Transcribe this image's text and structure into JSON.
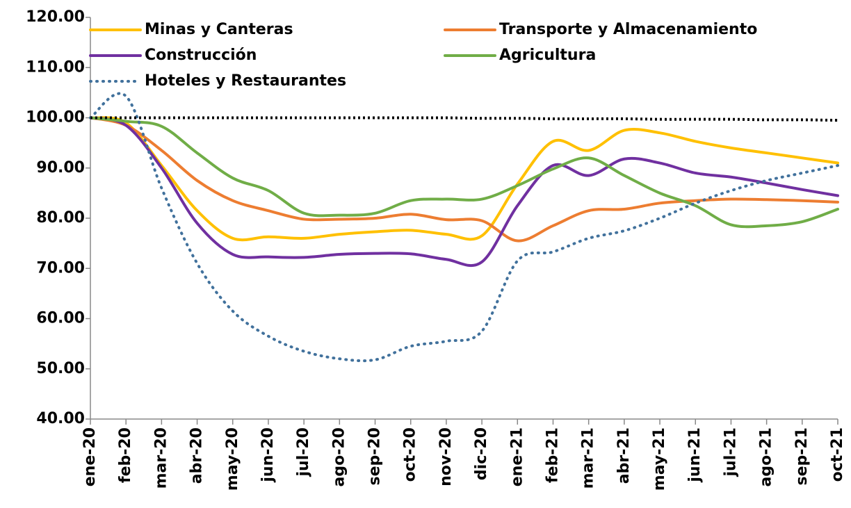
{
  "chart_data": {
    "type": "line",
    "categories": [
      "ene-20",
      "feb-20",
      "mar-20",
      "abr-20",
      "may-20",
      "jun-20",
      "jul-20",
      "ago-20",
      "sep-20",
      "oct-20",
      "nov-20",
      "dic-20",
      "ene-21",
      "feb-21",
      "mar-21",
      "abr-21",
      "may-21",
      "jun-21",
      "jul-21",
      "ago-21",
      "sep-21",
      "oct-21"
    ],
    "series": [
      {
        "name": "Minas y Canteras",
        "color": "#ffc000",
        "style": "solid",
        "values": [
          100,
          99,
          90.5,
          81.5,
          76,
          76.3,
          76,
          76.8,
          77.3,
          77.6,
          76.8,
          76.5,
          86.8,
          95.3,
          93.5,
          97.5,
          97,
          95.3,
          94,
          93,
          92,
          91
        ]
      },
      {
        "name": "Transporte y Almacenamiento",
        "color": "#ed7d31",
        "style": "solid",
        "values": [
          100,
          98.5,
          93.5,
          87.5,
          83.5,
          81.5,
          79.8,
          79.8,
          80,
          80.8,
          79.7,
          79.5,
          75.5,
          78.5,
          81.5,
          81.8,
          83,
          83.5,
          83.8,
          83.7,
          83.5,
          83.2
        ]
      },
      {
        "name": "Construcción",
        "color": "#7030a0",
        "style": "solid",
        "values": [
          100,
          98.5,
          90,
          79,
          72.8,
          72.3,
          72.2,
          72.8,
          73,
          72.9,
          71.8,
          71.3,
          82.5,
          90.5,
          88.5,
          91.8,
          91,
          89,
          88.2,
          87,
          85.7,
          84.5
        ]
      },
      {
        "name": "Agricultura",
        "color": "#70ad47",
        "style": "solid",
        "values": [
          100,
          99.3,
          98.3,
          93,
          88,
          85.5,
          81,
          80.6,
          81,
          83.5,
          83.8,
          83.8,
          86.5,
          89.8,
          92,
          88.5,
          85,
          82.5,
          78.7,
          78.5,
          79.3,
          81.8
        ]
      },
      {
        "name": "Hoteles y Restaurantes",
        "color": "#41719c",
        "style": "dotted",
        "values": [
          100,
          104.3,
          86,
          71,
          61.5,
          56.5,
          53.5,
          52,
          51.8,
          54.5,
          55.5,
          57.5,
          71.5,
          73.3,
          76,
          77.5,
          80,
          83,
          85.5,
          87.5,
          89,
          90.5
        ]
      },
      {
        "color": "#000000",
        "style": "dotted",
        "legend": false,
        "values": [
          100,
          100,
          100,
          100,
          100,
          100,
          100,
          100,
          100,
          100,
          100,
          99.9,
          99.9,
          99.8,
          99.8,
          99.8,
          99.7,
          99.7,
          99.7,
          99.6,
          99.6,
          99.5
        ]
      }
    ],
    "ylim": [
      40,
      120
    ],
    "yticks": [
      {
        "value": 40,
        "label": "40.00"
      },
      {
        "value": 50,
        "label": "50.00"
      },
      {
        "value": 60,
        "label": "60.00"
      },
      {
        "value": 70,
        "label": "70.00"
      },
      {
        "value": 80,
        "label": "80.00"
      },
      {
        "value": 90,
        "label": "90.00"
      },
      {
        "value": 100,
        "label": "100.00"
      },
      {
        "value": 110,
        "label": "110.00"
      },
      {
        "value": 120,
        "label": "120.00"
      }
    ],
    "grid": false,
    "legend": "top"
  }
}
